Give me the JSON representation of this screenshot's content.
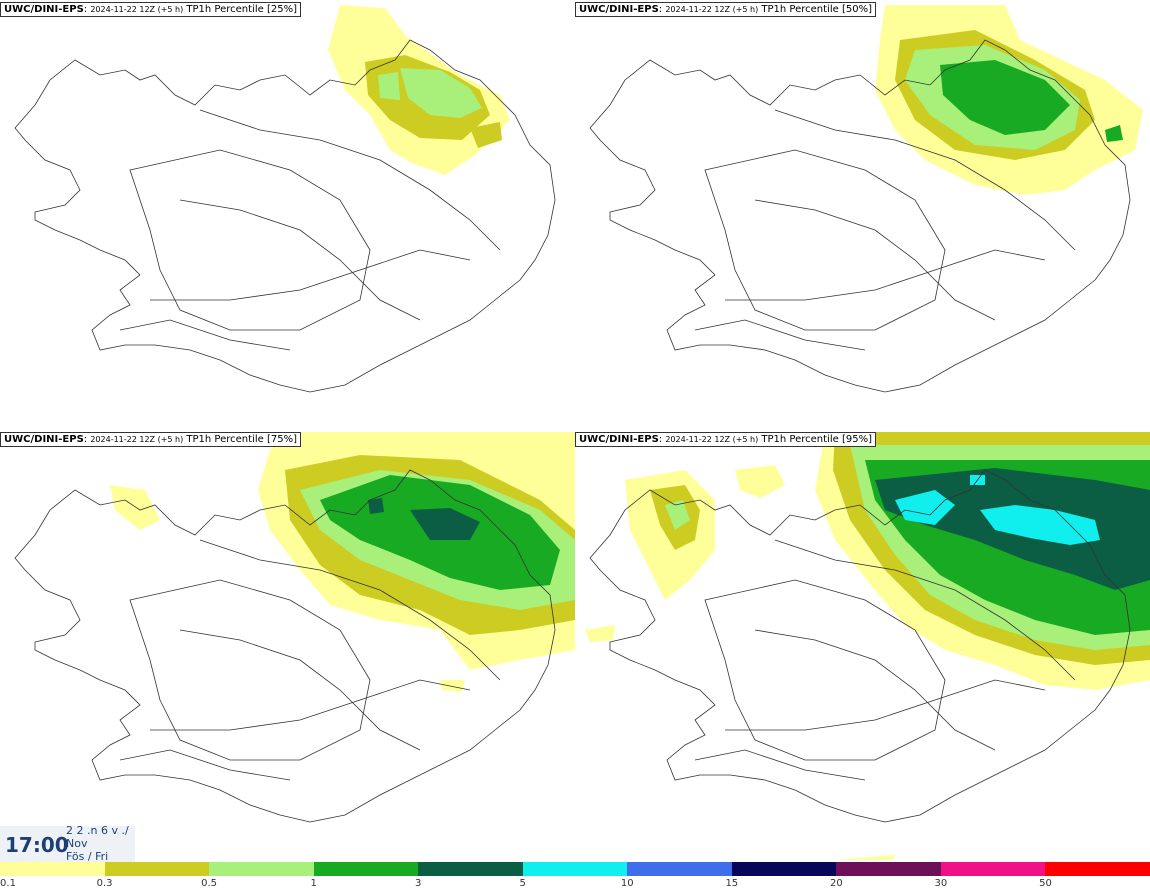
{
  "panels": [
    {
      "model": "UWC/DINI-EPS",
      "run": "2024-11-22 12Z (+5 h)",
      "field": "TP1h Percentile [25%]"
    },
    {
      "model": "UWC/DINI-EPS",
      "run": "2024-11-22 12Z (+5 h)",
      "field": "TP1h Percentile [50%]"
    },
    {
      "model": "UWC/DINI-EPS",
      "run": "2024-11-22 12Z (+5 h)",
      "field": "TP1h Percentile [75%]"
    },
    {
      "model": "UWC/DINI-EPS",
      "run": "2024-11-22 12Z (+5 h)",
      "field": "TP1h Percentile [95%]"
    }
  ],
  "time": {
    "clock": "17:00",
    "date_line1": "2 2 .n 6 v ./",
    "date_line2": "Nov",
    "date_line3": "Fös / Fri"
  },
  "legend": {
    "ticks": [
      "0.1",
      "0.3",
      "0.5",
      "1",
      "3",
      "5",
      "10",
      "15",
      "20",
      "30",
      "50"
    ],
    "colors": [
      "#ffff99",
      "#cccc22",
      "#a8f07a",
      "#18aa22",
      "#0b5e44",
      "#11eeee",
      "#3e6eea",
      "#07075a",
      "#6e0f5a",
      "#ee1188",
      "#ff0000"
    ]
  }
}
